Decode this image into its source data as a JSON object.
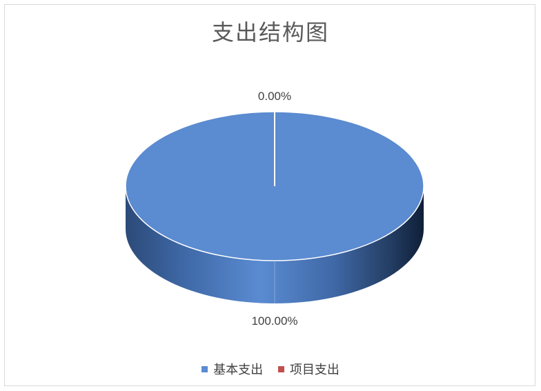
{
  "chart_data": {
    "type": "pie",
    "title": "支出结构图",
    "categories": [
      "基本支出",
      "项目支出"
    ],
    "values": [
      100.0,
      0.0
    ],
    "data_labels": [
      "100.00%",
      "0.00%"
    ],
    "colors": [
      "#5b8bd0",
      "#c0504d"
    ],
    "legend_position": "bottom",
    "style": "3d"
  }
}
